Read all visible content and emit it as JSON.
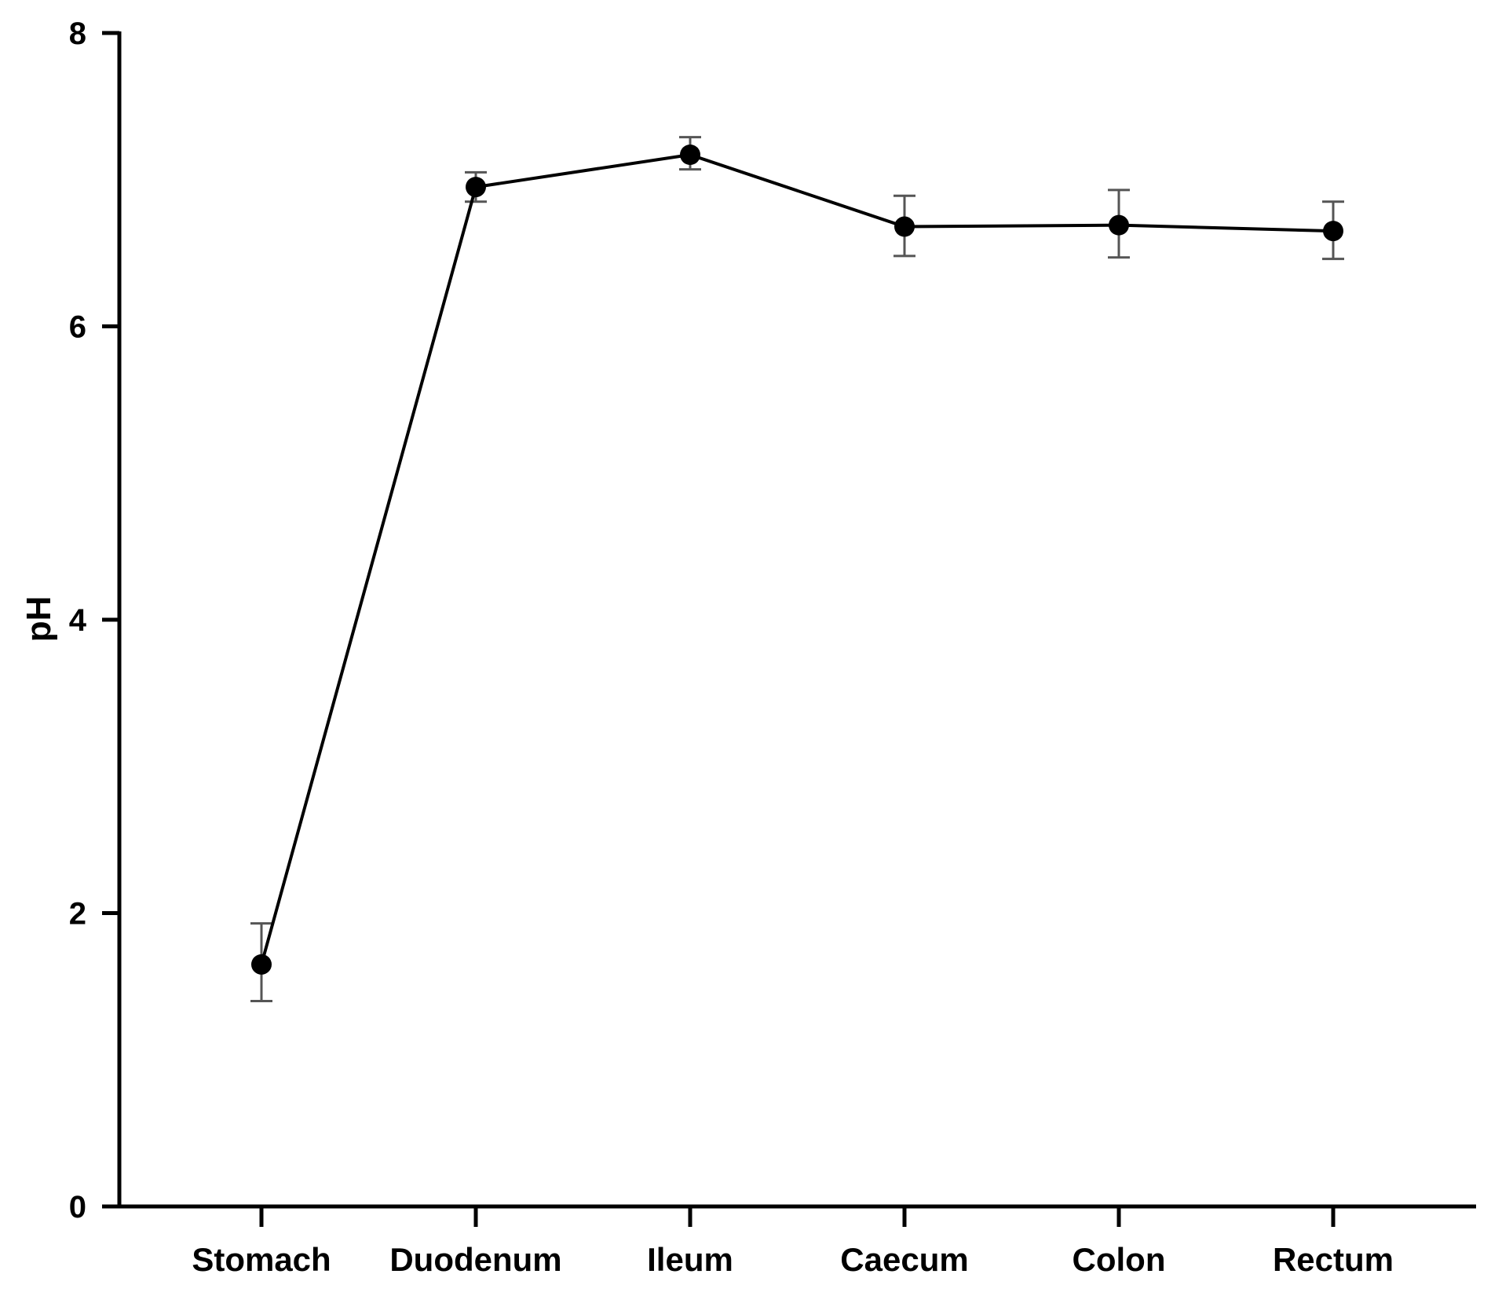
{
  "chart_data": {
    "type": "line",
    "title": "",
    "xlabel": "",
    "ylabel": "pH",
    "ylim": [
      0,
      8
    ],
    "yticks": [
      "0",
      "2",
      "4",
      "6",
      "8"
    ],
    "categories": [
      "Stomach",
      "Duodenum",
      "Ileum",
      "Caecum",
      "Colon",
      "Rectum"
    ],
    "series": [
      {
        "values": [
          1.65,
          6.95,
          7.17,
          6.68,
          6.69,
          6.65
        ],
        "error_low": [
          1.4,
          6.85,
          7.07,
          6.48,
          6.47,
          6.46
        ],
        "error_high": [
          1.93,
          7.05,
          7.29,
          6.89,
          6.93,
          6.85
        ],
        "color": "#000000",
        "error_color": "#555555",
        "marker": "filled-circle"
      }
    ],
    "grid": false,
    "legend": "none"
  }
}
